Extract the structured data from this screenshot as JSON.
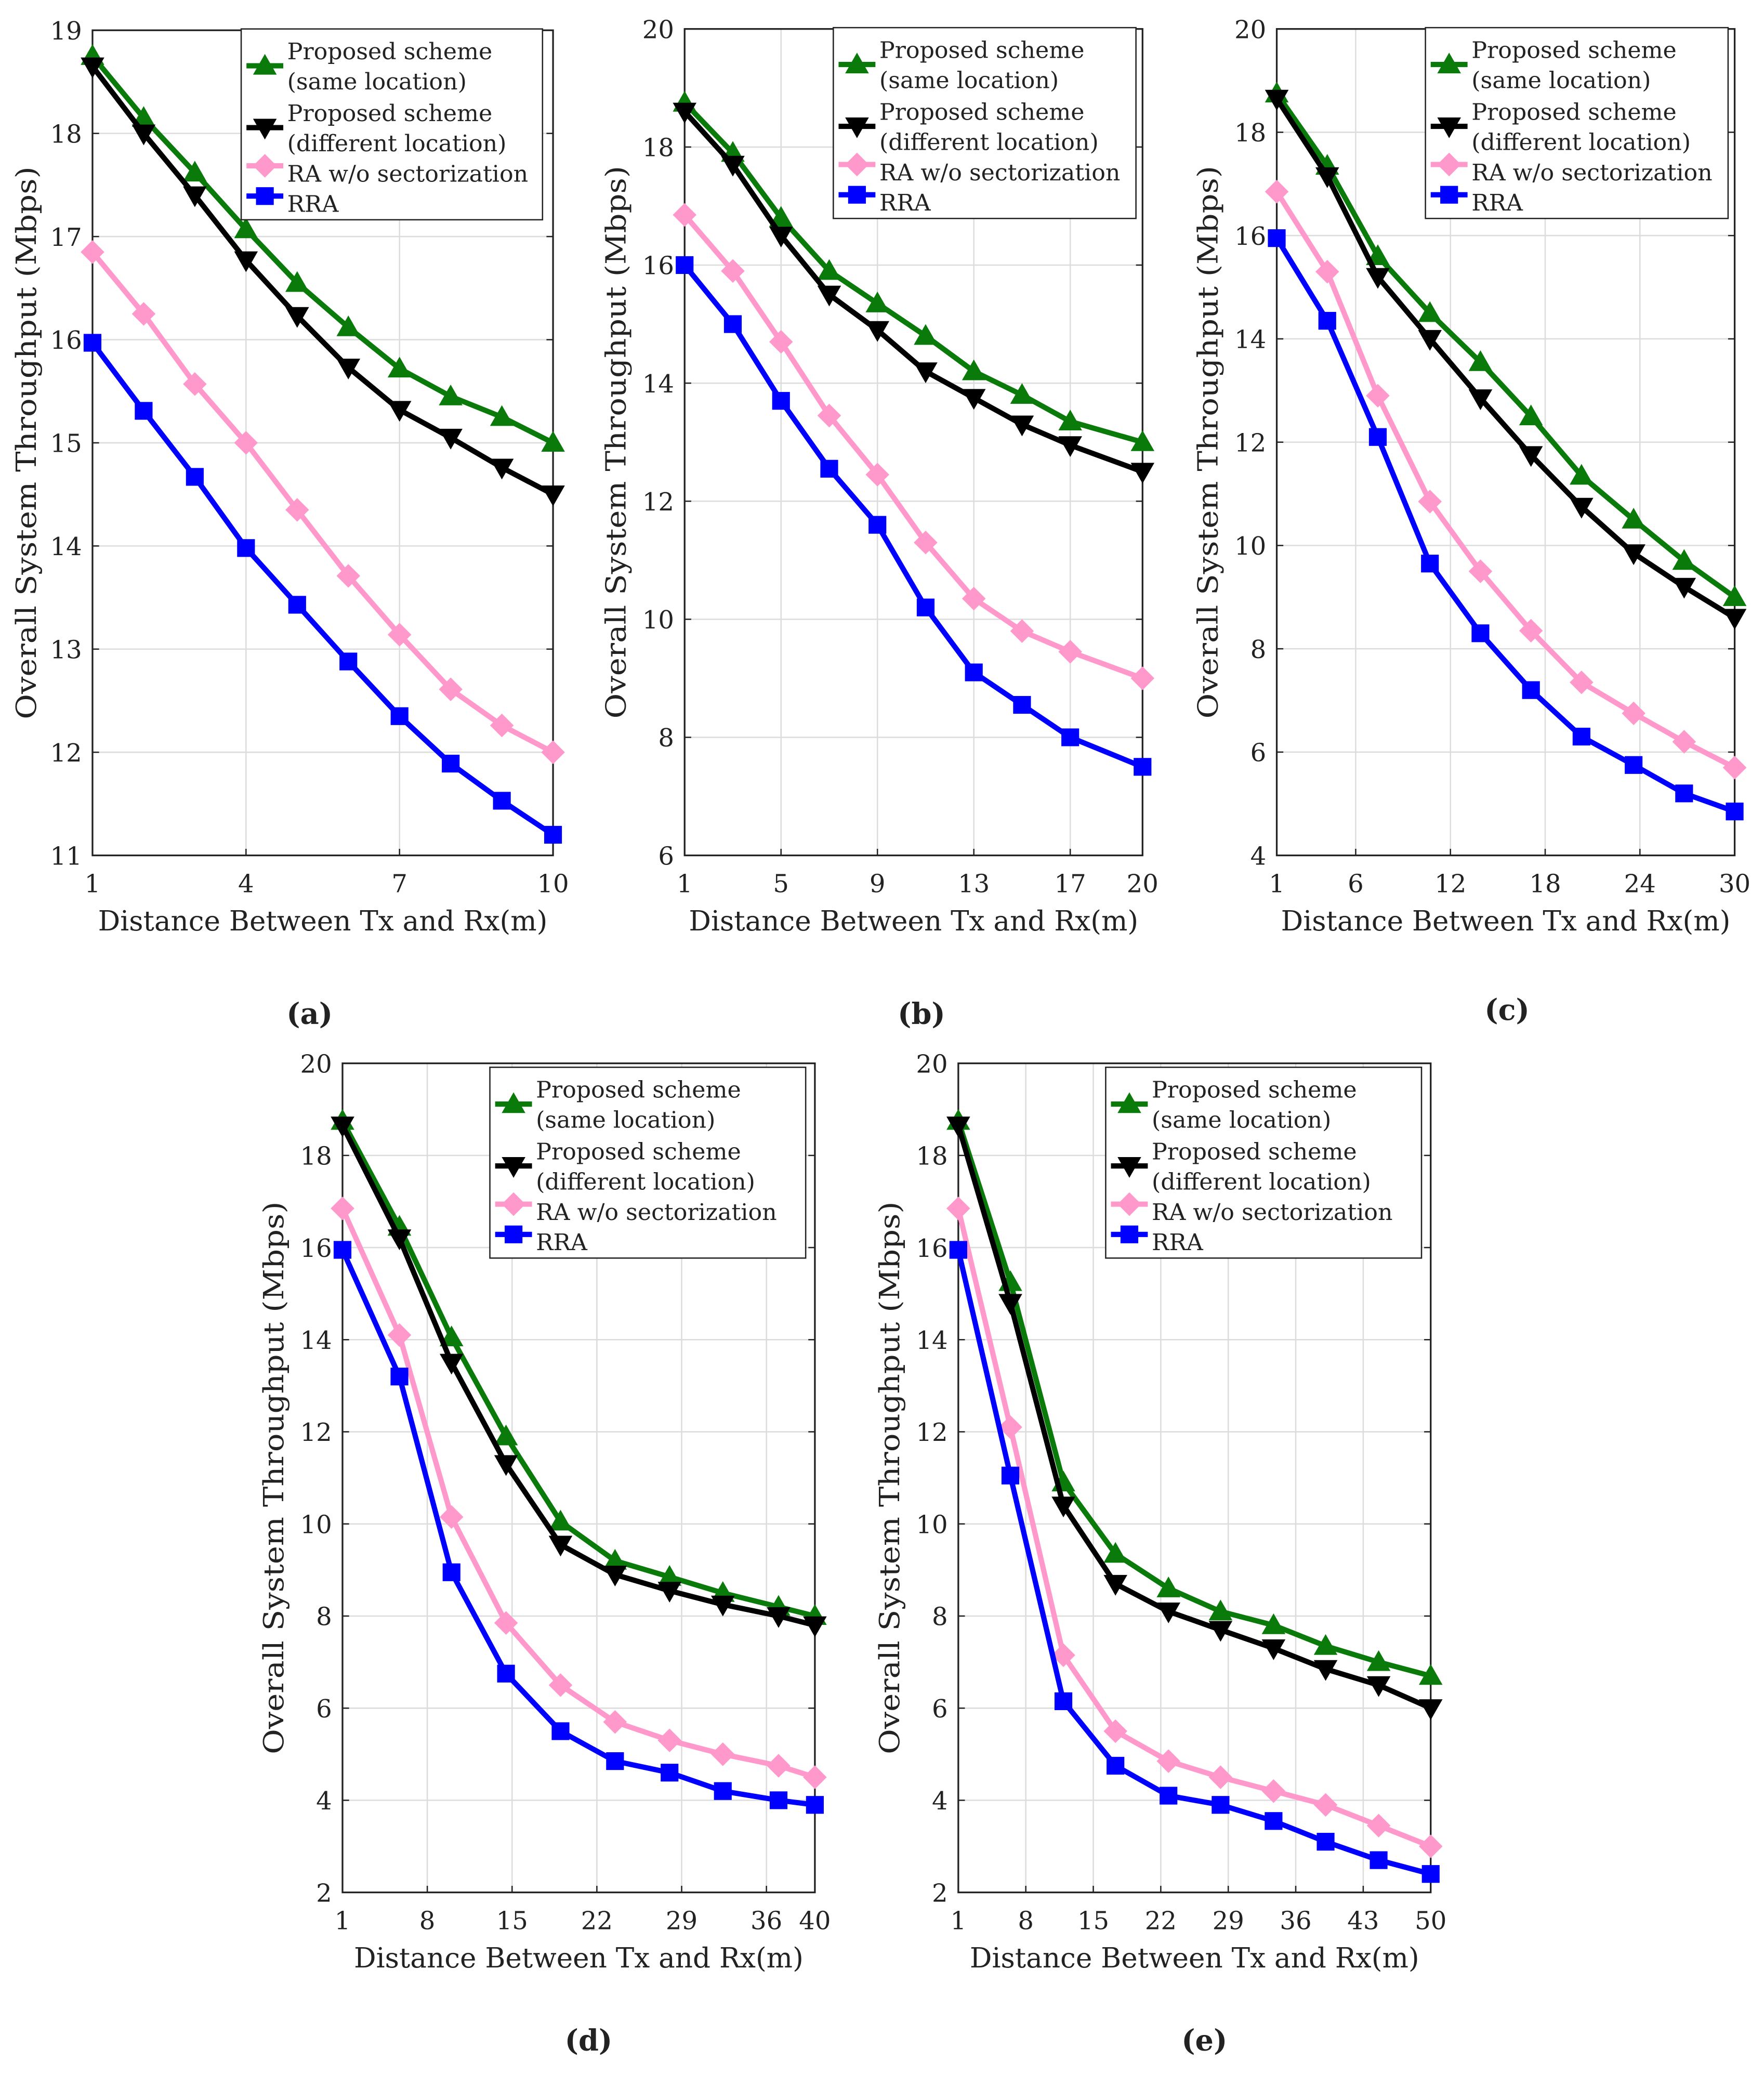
{
  "chart_data": [
    {
      "type": "line",
      "caption": "(a)",
      "xlabel": "Distance Between Tx and Rx(m)",
      "ylabel": "Overall System Throughput (Mbps)",
      "xlim": [
        1,
        10
      ],
      "ylim": [
        11,
        19
      ],
      "xticks": [
        1,
        4,
        7,
        10
      ],
      "yticks": [
        11,
        12,
        13,
        14,
        15,
        16,
        17,
        18,
        19
      ],
      "grid": true,
      "legend_position": "top-right",
      "x": [
        1,
        2,
        3,
        4,
        5,
        6,
        7,
        8,
        9,
        10
      ],
      "series": [
        {
          "name": "Proposed scheme (same location)",
          "values": [
            18.75,
            18.15,
            17.62,
            17.07,
            16.55,
            16.12,
            15.72,
            15.45,
            15.25,
            15.0
          ]
        },
        {
          "name": "Proposed scheme (different location)",
          "values": [
            18.65,
            18.0,
            17.4,
            16.77,
            16.23,
            15.73,
            15.32,
            15.05,
            14.76,
            14.5
          ]
        },
        {
          "name": "RA w/o sectorization",
          "values": [
            16.85,
            16.25,
            15.57,
            15.0,
            14.35,
            13.71,
            13.14,
            12.61,
            12.26,
            12.0
          ]
        },
        {
          "name": "RRA",
          "values": [
            15.97,
            15.31,
            14.67,
            13.98,
            13.43,
            12.88,
            12.35,
            11.89,
            11.53,
            11.2
          ]
        }
      ]
    },
    {
      "type": "line",
      "caption": "(b)",
      "xlabel": "Distance Between Tx and Rx(m)",
      "ylabel": "Overall System Throughput (Mbps)",
      "xlim": [
        1,
        20
      ],
      "ylim": [
        6,
        20
      ],
      "xticks": [
        1,
        5,
        9,
        13,
        17,
        20
      ],
      "yticks": [
        6,
        8,
        10,
        12,
        14,
        16,
        18,
        20
      ],
      "grid": true,
      "legend_position": "top-right",
      "x": [
        1,
        3,
        5,
        7,
        9,
        11,
        13,
        15,
        17,
        20
      ],
      "series": [
        {
          "name": "Proposed scheme (same location)",
          "values": [
            18.75,
            17.9,
            16.8,
            15.9,
            15.35,
            14.8,
            14.2,
            13.8,
            13.35,
            13.0
          ]
        },
        {
          "name": "Proposed scheme (different location)",
          "values": [
            18.6,
            17.7,
            16.5,
            15.5,
            14.9,
            14.2,
            13.75,
            13.3,
            12.95,
            12.5
          ]
        },
        {
          "name": "RA w/o sectorization",
          "values": [
            16.85,
            15.9,
            14.7,
            13.45,
            12.45,
            11.3,
            10.35,
            9.8,
            9.45,
            9.0
          ]
        },
        {
          "name": "RRA",
          "values": [
            16.0,
            15.0,
            13.7,
            12.55,
            11.6,
            10.2,
            9.1,
            8.55,
            8.0,
            7.5
          ]
        }
      ]
    },
    {
      "type": "line",
      "caption": "(c)",
      "xlabel": "Distance Between Tx and Rx(m)",
      "ylabel": "Overall System Throughput (Mbps)",
      "xlim": [
        1,
        30
      ],
      "ylim": [
        4,
        20
      ],
      "xticks": [
        1,
        6,
        12,
        18,
        24,
        30
      ],
      "yticks": [
        4,
        6,
        8,
        10,
        12,
        14,
        16,
        18,
        20
      ],
      "grid": true,
      "legend_position": "top-right",
      "x": [
        1,
        4.2,
        7.4,
        10.7,
        13.9,
        17.1,
        20.3,
        23.6,
        26.8,
        30
      ],
      "series": [
        {
          "name": "Proposed scheme (same location)",
          "values": [
            18.75,
            17.35,
            15.6,
            14.5,
            13.55,
            12.5,
            11.35,
            10.5,
            9.7,
            9.0
          ]
        },
        {
          "name": "Proposed scheme (different location)",
          "values": [
            18.65,
            17.15,
            15.2,
            14.0,
            12.85,
            11.75,
            10.75,
            9.85,
            9.2,
            8.6
          ]
        },
        {
          "name": "RA w/o sectorization",
          "values": [
            16.85,
            15.3,
            12.9,
            10.85,
            9.5,
            8.35,
            7.35,
            6.75,
            6.2,
            5.7
          ]
        },
        {
          "name": "RRA",
          "values": [
            15.95,
            14.35,
            12.1,
            9.65,
            8.3,
            7.2,
            6.3,
            5.75,
            5.2,
            4.85
          ]
        }
      ]
    },
    {
      "type": "line",
      "caption": "(d)",
      "xlabel": "Distance Between Tx and Rx(m)",
      "ylabel": "Overall System Throughput (Mbps)",
      "xlim": [
        1,
        40
      ],
      "ylim": [
        2,
        20
      ],
      "xticks": [
        1,
        8,
        15,
        22,
        29,
        36,
        40
      ],
      "yticks": [
        2,
        4,
        6,
        8,
        10,
        12,
        14,
        16,
        18,
        20
      ],
      "grid": true,
      "legend_position": "top-right",
      "x": [
        1,
        5.7,
        10,
        14.5,
        19,
        23.5,
        28,
        32.4,
        37,
        40
      ],
      "series": [
        {
          "name": "Proposed scheme (same location)",
          "values": [
            18.75,
            16.45,
            14.05,
            11.9,
            10.05,
            9.2,
            8.85,
            8.5,
            8.2,
            8.0
          ]
        },
        {
          "name": "Proposed scheme (different location)",
          "values": [
            18.65,
            16.2,
            13.5,
            11.3,
            9.55,
            8.9,
            8.55,
            8.25,
            8.0,
            7.8
          ]
        },
        {
          "name": "RA w/o sectorization",
          "values": [
            16.85,
            14.1,
            10.15,
            7.85,
            6.5,
            5.7,
            5.3,
            5.0,
            4.75,
            4.5
          ]
        },
        {
          "name": "RRA",
          "values": [
            15.95,
            13.2,
            8.95,
            6.75,
            5.5,
            4.85,
            4.6,
            4.2,
            4.0,
            3.9
          ]
        }
      ]
    },
    {
      "type": "line",
      "caption": "(e)",
      "xlabel": "Distance Between Tx and Rx(m)",
      "ylabel": "Overall System Throughput (Mbps)",
      "xlim": [
        1,
        50
      ],
      "ylim": [
        2,
        20
      ],
      "xticks": [
        1,
        8,
        15,
        22,
        29,
        36,
        43,
        50
      ],
      "yticks": [
        2,
        4,
        6,
        8,
        10,
        12,
        14,
        16,
        18,
        20
      ],
      "grid": true,
      "legend_position": "top-right",
      "x": [
        1,
        6.4,
        11.9,
        17.3,
        22.8,
        28.2,
        33.7,
        39.1,
        44.6,
        50
      ],
      "series": [
        {
          "name": "Proposed scheme (same location)",
          "values": [
            18.75,
            15.25,
            10.9,
            9.35,
            8.6,
            8.1,
            7.8,
            7.35,
            7.0,
            6.7
          ]
        },
        {
          "name": "Proposed scheme (different location)",
          "values": [
            18.65,
            14.8,
            10.4,
            8.7,
            8.1,
            7.7,
            7.3,
            6.85,
            6.5,
            6.0
          ]
        },
        {
          "name": "RA w/o sectorization",
          "values": [
            16.85,
            12.1,
            7.15,
            5.5,
            4.85,
            4.5,
            4.2,
            3.9,
            3.45,
            3.0
          ]
        },
        {
          "name": "RRA",
          "values": [
            15.95,
            11.05,
            6.15,
            4.75,
            4.1,
            3.9,
            3.55,
            3.1,
            2.7,
            2.4
          ]
        }
      ]
    }
  ],
  "legend_lines": [
    [
      "Proposed scheme",
      "(same location)"
    ],
    [
      "Proposed scheme",
      "(different location)"
    ],
    [
      "RA w/o sectorization"
    ],
    [
      "RRA"
    ]
  ],
  "series_style": [
    {
      "color": "#0a7a0a",
      "marker": "triangle-up"
    },
    {
      "color": "#000000",
      "marker": "triangle-down"
    },
    {
      "color": "#ff99cc",
      "marker": "diamond"
    },
    {
      "color": "#0000ff",
      "marker": "square"
    }
  ]
}
